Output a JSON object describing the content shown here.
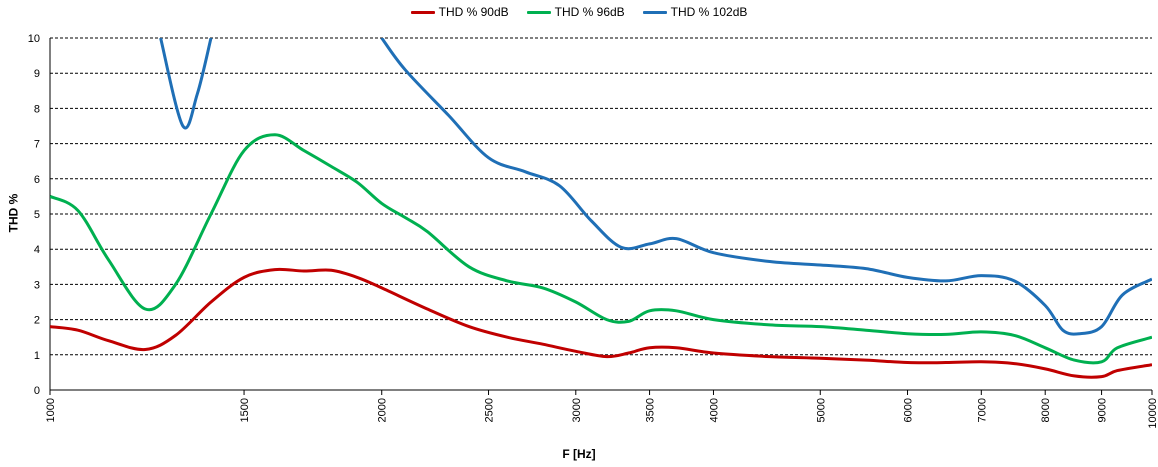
{
  "chart_data": {
    "type": "line",
    "xlabel": "F [Hz]",
    "ylabel": "THD %",
    "x_scale": "log",
    "xlim": [
      1000,
      10000
    ],
    "ylim": [
      0,
      10
    ],
    "grid": "horizontal dashed",
    "legend_position": "top-center",
    "x_ticks": [
      "1000",
      "1500",
      "2000",
      "2500",
      "3000",
      "3500",
      "4000",
      "5000",
      "6000",
      "7000",
      "8000",
      "9000",
      "10000"
    ],
    "y_ticks": [
      "0",
      "1",
      "2",
      "3",
      "4",
      "5",
      "6",
      "7",
      "8",
      "9",
      "10"
    ],
    "series": [
      {
        "name": "THD % 90dB",
        "color": "#c00000",
        "points": [
          [
            1000,
            1.8
          ],
          [
            1060,
            1.7
          ],
          [
            1130,
            1.4
          ],
          [
            1220,
            1.15
          ],
          [
            1300,
            1.55
          ],
          [
            1400,
            2.5
          ],
          [
            1500,
            3.2
          ],
          [
            1600,
            3.42
          ],
          [
            1700,
            3.38
          ],
          [
            1800,
            3.4
          ],
          [
            1900,
            3.2
          ],
          [
            2000,
            2.9
          ],
          [
            2200,
            2.3
          ],
          [
            2400,
            1.8
          ],
          [
            2600,
            1.5
          ],
          [
            2800,
            1.3
          ],
          [
            3000,
            1.1
          ],
          [
            3200,
            0.95
          ],
          [
            3350,
            1.05
          ],
          [
            3500,
            1.2
          ],
          [
            3700,
            1.2
          ],
          [
            4000,
            1.05
          ],
          [
            4500,
            0.95
          ],
          [
            5000,
            0.9
          ],
          [
            5500,
            0.85
          ],
          [
            6000,
            0.78
          ],
          [
            6500,
            0.78
          ],
          [
            7000,
            0.8
          ],
          [
            7500,
            0.75
          ],
          [
            8000,
            0.6
          ],
          [
            8500,
            0.4
          ],
          [
            9000,
            0.38
          ],
          [
            9300,
            0.55
          ],
          [
            10000,
            0.72
          ]
        ]
      },
      {
        "name": "THD % 96dB",
        "color": "#00b050",
        "points": [
          [
            1000,
            5.5
          ],
          [
            1060,
            5.1
          ],
          [
            1130,
            3.7
          ],
          [
            1220,
            2.3
          ],
          [
            1300,
            3.0
          ],
          [
            1400,
            5.0
          ],
          [
            1500,
            6.8
          ],
          [
            1600,
            7.25
          ],
          [
            1700,
            6.8
          ],
          [
            1800,
            6.35
          ],
          [
            1900,
            5.9
          ],
          [
            2000,
            5.3
          ],
          [
            2100,
            4.9
          ],
          [
            2200,
            4.5
          ],
          [
            2400,
            3.5
          ],
          [
            2600,
            3.1
          ],
          [
            2800,
            2.9
          ],
          [
            3000,
            2.5
          ],
          [
            3200,
            2.0
          ],
          [
            3350,
            1.95
          ],
          [
            3500,
            2.25
          ],
          [
            3700,
            2.25
          ],
          [
            4000,
            2.0
          ],
          [
            4500,
            1.85
          ],
          [
            5000,
            1.8
          ],
          [
            5500,
            1.7
          ],
          [
            6000,
            1.6
          ],
          [
            6500,
            1.58
          ],
          [
            7000,
            1.65
          ],
          [
            7500,
            1.55
          ],
          [
            8000,
            1.2
          ],
          [
            8500,
            0.85
          ],
          [
            9000,
            0.8
          ],
          [
            9300,
            1.2
          ],
          [
            10000,
            1.5
          ]
        ]
      },
      {
        "name": "THD % 102dB",
        "color": "#1f6fb6",
        "points": [
          [
            1260,
            10.0
          ],
          [
            1320,
            7.5
          ],
          [
            1360,
            8.4
          ],
          [
            1400,
            10.0
          ]
        ],
        "points_b": [
          [
            2000,
            10.0
          ],
          [
            2100,
            9.1
          ],
          [
            2300,
            7.8
          ],
          [
            2500,
            6.6
          ],
          [
            2700,
            6.2
          ],
          [
            2900,
            5.8
          ],
          [
            3100,
            4.8
          ],
          [
            3300,
            4.05
          ],
          [
            3500,
            4.15
          ],
          [
            3700,
            4.3
          ],
          [
            4000,
            3.9
          ],
          [
            4500,
            3.65
          ],
          [
            5000,
            3.55
          ],
          [
            5500,
            3.45
          ],
          [
            6000,
            3.2
          ],
          [
            6500,
            3.1
          ],
          [
            7000,
            3.25
          ],
          [
            7500,
            3.1
          ],
          [
            8000,
            2.4
          ],
          [
            8300,
            1.7
          ],
          [
            8600,
            1.6
          ],
          [
            9000,
            1.8
          ],
          [
            9400,
            2.7
          ],
          [
            10000,
            3.15
          ]
        ]
      }
    ]
  }
}
